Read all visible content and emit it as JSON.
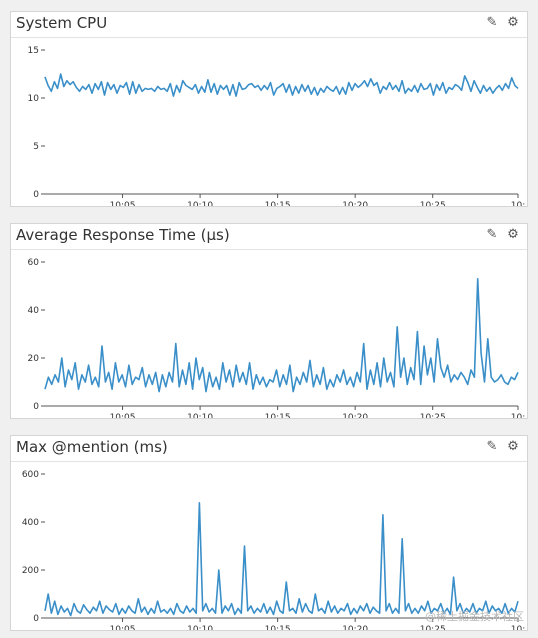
{
  "panels": [
    {
      "title": "System CPU",
      "edit_icon": "pencil-icon",
      "settings_icon": "gear-icon",
      "chart_data": {
        "type": "line",
        "color": "#3a8fc9",
        "ylim": [
          0,
          15
        ],
        "yticks": [
          0,
          5,
          10,
          15
        ],
        "xlim": [
          0,
          30.5
        ],
        "xticks": [
          5,
          10,
          15,
          20,
          25,
          30.5
        ],
        "xtick_labels": [
          "10:05",
          "10:10",
          "10:15",
          "10:20",
          "10:25",
          "10:"
        ],
        "values": [
          12.2,
          11.3,
          10.7,
          11.7,
          11,
          12.5,
          11.2,
          11.8,
          11.4,
          11.7,
          11.1,
          10.7,
          11.2,
          10.9,
          11.4,
          10.5,
          11.5,
          10.9,
          11.7,
          10.3,
          11.6,
          10.9,
          11.4,
          10.5,
          11.3,
          11.1,
          11.6,
          10.4,
          11.7,
          10.5,
          11.4,
          10.7,
          11,
          10.9,
          11,
          10.7,
          11.2,
          10.9,
          11,
          10.7,
          11.5,
          10.2,
          11.3,
          10.6,
          11.8,
          11.3,
          11.1,
          10.9,
          11.4,
          10.5,
          11.2,
          10.6,
          11.9,
          10.6,
          11.5,
          10.4,
          11.3,
          10.9,
          11.3,
          10.3,
          11.4,
          10.2,
          11.6,
          10.9,
          11,
          11.4,
          11.5,
          11.1,
          11.3,
          10.8,
          11.3,
          10.9,
          11.6,
          10.3,
          11,
          11.2,
          11.5,
          10.6,
          11.4,
          10.3,
          11.2,
          10.5,
          11.4,
          10.7,
          11.3,
          10.4,
          11.1,
          10.3,
          11,
          10.6,
          11.2,
          10.9,
          10.7,
          11.2,
          10.4,
          11.1,
          10.4,
          11.6,
          10.8,
          11.5,
          11.1,
          11.4,
          11.8,
          11.2,
          12,
          11.3,
          11.6,
          10.5,
          11.2,
          10.9,
          11.6,
          10.9,
          11.3,
          10.7,
          11.8,
          10.5,
          11,
          10.7,
          11.3,
          10.6,
          11.5,
          10.9,
          11,
          11.5,
          10.3,
          11.4,
          10.8,
          11.6,
          10.5,
          11.1,
          10.9,
          11.4,
          11.2,
          10.8,
          12.3,
          11.6,
          10.7,
          11.8,
          11.1,
          10.5,
          11.3,
          10.7,
          11.1,
          10.5,
          11,
          11.3,
          10.8,
          11.5,
          11,
          12.1,
          11.3,
          11
        ]
      }
    },
    {
      "title": "Average Response Time (μs)",
      "edit_icon": "pencil-icon",
      "settings_icon": "gear-icon",
      "chart_data": {
        "type": "line",
        "color": "#3a8fc9",
        "ylim": [
          0,
          60
        ],
        "yticks": [
          0,
          20,
          40,
          60
        ],
        "xlim": [
          0,
          30.5
        ],
        "xticks": [
          5,
          10,
          15,
          20,
          25,
          30.5
        ],
        "xtick_labels": [
          "10:05",
          "10:10",
          "10:15",
          "10:20",
          "10:25",
          "10:"
        ],
        "values": [
          7,
          12,
          9,
          13,
          10,
          20,
          8,
          15,
          11,
          18,
          7,
          13,
          10,
          17,
          9,
          12,
          8,
          25,
          10,
          14,
          7,
          18,
          10,
          13,
          8,
          17,
          9,
          12,
          11,
          16,
          8,
          13,
          9,
          14,
          6,
          13,
          8,
          14,
          10,
          26,
          8,
          15,
          9,
          18,
          7,
          20,
          11,
          16,
          6,
          14,
          8,
          12,
          7,
          18,
          10,
          15,
          8,
          17,
          10,
          14,
          9,
          18,
          7,
          13,
          9,
          12,
          8,
          11,
          10,
          15,
          8,
          13,
          9,
          17,
          6,
          12,
          9,
          14,
          10,
          19,
          8,
          13,
          9,
          16,
          7,
          11,
          8,
          13,
          10,
          15,
          9,
          12,
          8,
          14,
          10,
          26,
          7,
          15,
          9,
          18,
          8,
          20,
          10,
          14,
          8,
          33,
          12,
          20,
          9,
          16,
          11,
          31,
          9,
          25,
          13,
          20,
          10,
          28,
          16,
          12,
          17,
          10,
          13,
          11,
          14,
          12,
          9,
          15,
          12,
          53,
          22,
          10,
          28,
          12,
          10,
          11,
          13,
          10,
          9,
          12,
          11,
          14
        ]
      }
    },
    {
      "title": "Max @mention (ms)",
      "edit_icon": "pencil-icon",
      "settings_icon": "gear-icon",
      "chart_data": {
        "type": "line",
        "color": "#3a8fc9",
        "ylim": [
          0,
          600
        ],
        "yticks": [
          0,
          200,
          400,
          600
        ],
        "xlim": [
          0,
          30.5
        ],
        "xticks": [
          5,
          10,
          15,
          20,
          25,
          30.5
        ],
        "xtick_labels": [
          "10:05",
          "10:10",
          "10:15",
          "10:20",
          "10:25",
          "10:"
        ],
        "values": [
          30,
          100,
          20,
          70,
          15,
          50,
          25,
          40,
          10,
          60,
          30,
          20,
          55,
          35,
          20,
          45,
          30,
          70,
          20,
          50,
          35,
          25,
          60,
          15,
          40,
          20,
          50,
          30,
          20,
          80,
          25,
          45,
          15,
          40,
          20,
          70,
          25,
          35,
          20,
          40,
          15,
          60,
          30,
          20,
          50,
          25,
          40,
          20,
          480,
          30,
          60,
          25,
          40,
          20,
          200,
          20,
          50,
          30,
          60,
          15,
          40,
          20,
          300,
          30,
          50,
          20,
          40,
          25,
          60,
          20,
          45,
          15,
          70,
          30,
          20,
          150,
          30,
          40,
          20,
          80,
          25,
          60,
          30,
          20,
          100,
          30,
          40,
          20,
          70,
          25,
          50,
          20,
          40,
          30,
          60,
          15,
          40,
          20,
          50,
          30,
          60,
          20,
          45,
          30,
          20,
          430,
          30,
          60,
          20,
          40,
          20,
          330,
          30,
          60,
          20,
          40,
          20,
          50,
          30,
          70,
          20,
          40,
          30,
          60,
          20,
          40,
          15,
          170,
          30,
          60,
          20,
          40,
          25,
          60,
          20,
          40,
          30,
          70,
          20,
          50,
          30,
          40,
          20,
          60,
          20,
          40,
          25,
          70
        ]
      }
    }
  ],
  "watermark": "@稀土掘金技术社区"
}
